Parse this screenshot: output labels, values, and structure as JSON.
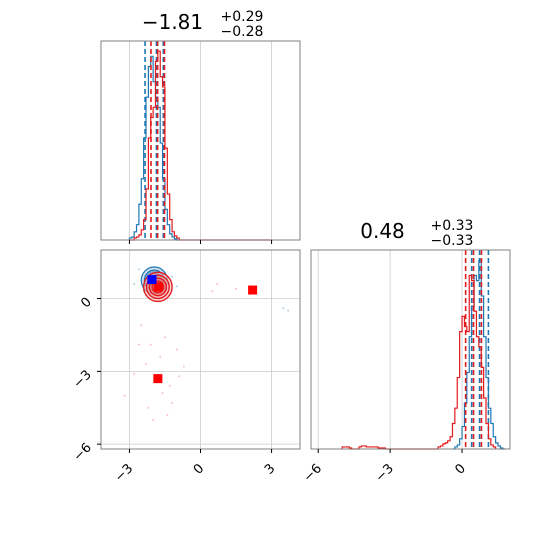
{
  "colors": {
    "blue": "#1f77b4",
    "red": "#e41a1c",
    "marker_red": "#ff0000",
    "marker_blue": "#0000ff",
    "grid": "#cccccc",
    "axes": "#808080"
  },
  "chart_data": {
    "type": "corner",
    "panels": [
      {
        "id": "hist_p1",
        "type": "histogram",
        "title": {
          "value": "−1.81",
          "sup": "+0.29",
          "sub": "−0.28"
        },
        "xlim": [
          -4.2,
          4.2
        ],
        "xticks": [
          -3,
          0,
          3
        ],
        "grid": true,
        "series": [
          {
            "color": "blue",
            "bins_x0": [
              -3.0,
              -2.9,
              -2.8,
              -2.7,
              -2.6,
              -2.5,
              -2.4,
              -2.3,
              -2.2,
              -2.1,
              -2.0,
              -1.9,
              -1.8,
              -1.7,
              -1.6,
              -1.5,
              -1.4,
              -1.3,
              -1.2,
              -1.1,
              -1.0
            ],
            "bin_width": 0.1,
            "counts": [
              2,
              3,
              8,
              15,
              35,
              60,
              100,
              140,
              170,
              180,
              155,
              140,
              130,
              95,
              60,
              30,
              15,
              6,
              3,
              1,
              0
            ],
            "quantiles": [
              -2.34,
              -1.86,
              -1.57
            ]
          },
          {
            "color": "red",
            "bins_x0": [
              -3.0,
              -2.9,
              -2.8,
              -2.7,
              -2.6,
              -2.5,
              -2.4,
              -2.3,
              -2.2,
              -2.1,
              -2.0,
              -1.9,
              -1.8,
              -1.7,
              -1.6,
              -1.5,
              -1.4,
              -1.3,
              -1.2,
              -1.1,
              -1.0,
              -0.9,
              -0.8,
              -0.7,
              -0.6,
              -0.5,
              -0.4,
              -0.3,
              -0.2,
              -0.1,
              0.0,
              0.1,
              0.2,
              0.3,
              0.4,
              0.5,
              0.6,
              0.7,
              0.8,
              0.9,
              1.0,
              1.1,
              1.2,
              1.3,
              1.4,
              1.5,
              1.6,
              1.7,
              1.8,
              1.9,
              2.0,
              2.1,
              2.2,
              2.3,
              2.4,
              2.5,
              2.6,
              2.7,
              2.8,
              2.9
            ],
            "bin_width": 0.1,
            "counts": [
              0,
              0,
              2,
              3,
              5,
              10,
              20,
              50,
              100,
              120,
              130,
              175,
              185,
              160,
              150,
              90,
              45,
              20,
              8,
              4,
              2,
              0,
              0,
              0,
              0,
              0,
              0,
              0,
              0,
              0,
              0,
              0,
              0,
              0,
              0,
              0,
              0,
              0,
              0,
              0,
              0,
              0,
              0,
              0,
              0,
              0,
              0,
              0,
              0,
              0,
              0,
              0,
              0,
              0,
              0,
              0,
              0,
              0,
              0,
              0
            ],
            "quantiles": [
              -2.09,
              -1.81,
              -1.52
            ]
          }
        ],
        "ymax": 195
      },
      {
        "id": "joint_p1_p2",
        "type": "2d",
        "xlim": [
          -4.2,
          4.2
        ],
        "ylim": [
          -6.2,
          2.0
        ],
        "xticks": [
          -3,
          0,
          3
        ],
        "yticks": [
          -6,
          -3,
          0
        ],
        "grid": true,
        "blue_contours": {
          "center": [
            -1.95,
            0.75
          ],
          "radii": [
            [
              0.55,
              0.55
            ],
            [
              0.42,
              0.42
            ],
            [
              0.3,
              0.3
            ],
            [
              0.18,
              0.18
            ]
          ]
        },
        "red_contours": {
          "center": [
            -1.8,
            0.48
          ],
          "radii": [
            [
              0.6,
              0.6
            ],
            [
              0.48,
              0.48
            ],
            [
              0.36,
              0.36
            ],
            [
              0.24,
              0.24
            ]
          ]
        },
        "scatter_red": [
          [
            -2.5,
            -1.1
          ],
          [
            -2.1,
            -1.9
          ],
          [
            -1.7,
            -2.4
          ],
          [
            -1.3,
            -3.6
          ],
          [
            -2.3,
            -2.7
          ],
          [
            -1.5,
            -1.6
          ],
          [
            -2.8,
            -3.1
          ],
          [
            -1.2,
            -4.3
          ],
          [
            -0.9,
            -3.2
          ],
          [
            -2.0,
            -5.0
          ],
          [
            -3.2,
            -4.0
          ],
          [
            -1.6,
            -3.9
          ],
          [
            -2.6,
            -1.9
          ],
          [
            -1.0,
            -2.1
          ],
          [
            -1.4,
            -4.8
          ],
          [
            -2.2,
            -4.5
          ],
          [
            -0.7,
            -2.8
          ],
          [
            0.5,
            0.3
          ],
          [
            0.7,
            0.6
          ],
          [
            1.5,
            0.4
          ]
        ],
        "scatter_blue": [
          [
            -2.4,
            0.3
          ],
          [
            -2.8,
            0.6
          ],
          [
            -1.2,
            0.9
          ],
          [
            -2.6,
            1.2
          ],
          [
            -1.5,
            0.2
          ],
          [
            3.5,
            -0.4
          ],
          [
            3.7,
            -0.5
          ],
          [
            -1.0,
            0.5
          ]
        ],
        "markers": [
          {
            "x": -1.78,
            "y": 0.48,
            "color": "marker_red"
          },
          {
            "x": 2.2,
            "y": 0.35,
            "color": "marker_red"
          },
          {
            "x": -1.8,
            "y": -3.3,
            "color": "marker_red"
          },
          {
            "x": -2.05,
            "y": 0.78,
            "color": "marker_blue"
          }
        ]
      },
      {
        "id": "hist_p2",
        "type": "histogram",
        "title": {
          "value": "0.48",
          "sup": "+0.33",
          "sub": "−0.33"
        },
        "xlim": [
          -6.3,
          2.0
        ],
        "xticks": [
          -6,
          -3,
          0
        ],
        "grid": true,
        "series": [
          {
            "color": "blue",
            "bins_x0": [
              -0.4,
              -0.3,
              -0.2,
              -0.1,
              0.0,
              0.1,
              0.2,
              0.3,
              0.4,
              0.5,
              0.6,
              0.7,
              0.8,
              0.9,
              1.0,
              1.1,
              1.2,
              1.3,
              1.4,
              1.5,
              1.6,
              1.7
            ],
            "bin_width": 0.1,
            "counts": [
              0,
              2,
              4,
              10,
              22,
              45,
              75,
              110,
              140,
              170,
              165,
              185,
              150,
              110,
              70,
              40,
              25,
              12,
              6,
              3,
              1,
              0
            ],
            "quantiles": [
              0.4,
              0.73,
              1.1
            ]
          },
          {
            "color": "red",
            "bins_x0": [
              -5.0,
              -4.9,
              -4.8,
              -4.7,
              -4.6,
              -4.5,
              -4.4,
              -4.3,
              -4.2,
              -4.1,
              -4.0,
              -3.9,
              -3.8,
              -3.7,
              -3.6,
              -3.5,
              -3.4,
              -3.3,
              -3.2,
              -3.1,
              -3.0,
              -2.9,
              -2.8,
              -2.7,
              -2.6,
              -2.5,
              -2.4,
              -2.3,
              -2.2,
              -2.1,
              -2.0,
              -1.9,
              -1.8,
              -1.7,
              -1.6,
              -1.5,
              -1.4,
              -1.3,
              -1.2,
              -1.1,
              -1.0,
              -0.9,
              -0.8,
              -0.7,
              -0.6,
              -0.5,
              -0.4,
              -0.3,
              -0.2,
              -0.1,
              0.0,
              0.1,
              0.2,
              0.3,
              0.4,
              0.5,
              0.6,
              0.7,
              0.8,
              0.9,
              1.0,
              1.1,
              1.2,
              1.3
            ],
            "bin_width": 0.1,
            "counts": [
              2,
              2,
              2,
              1,
              0,
              0,
              0,
              2,
              3,
              3,
              2,
              2,
              2,
              2,
              2,
              1,
              1,
              1,
              0,
              0,
              0,
              0,
              0,
              0,
              0,
              0,
              0,
              0,
              0,
              0,
              0,
              0,
              0,
              0,
              0,
              0,
              0,
              0,
              0,
              0,
              2,
              3,
              5,
              6,
              8,
              12,
              25,
              40,
              70,
              115,
              130,
              120,
              115,
              170,
              165,
              135,
              110,
              100,
              80,
              50,
              25,
              10,
              4,
              2
            ],
            "quantiles": [
              0.15,
              0.48,
              0.81
            ]
          }
        ],
        "ymax": 195
      }
    ]
  }
}
